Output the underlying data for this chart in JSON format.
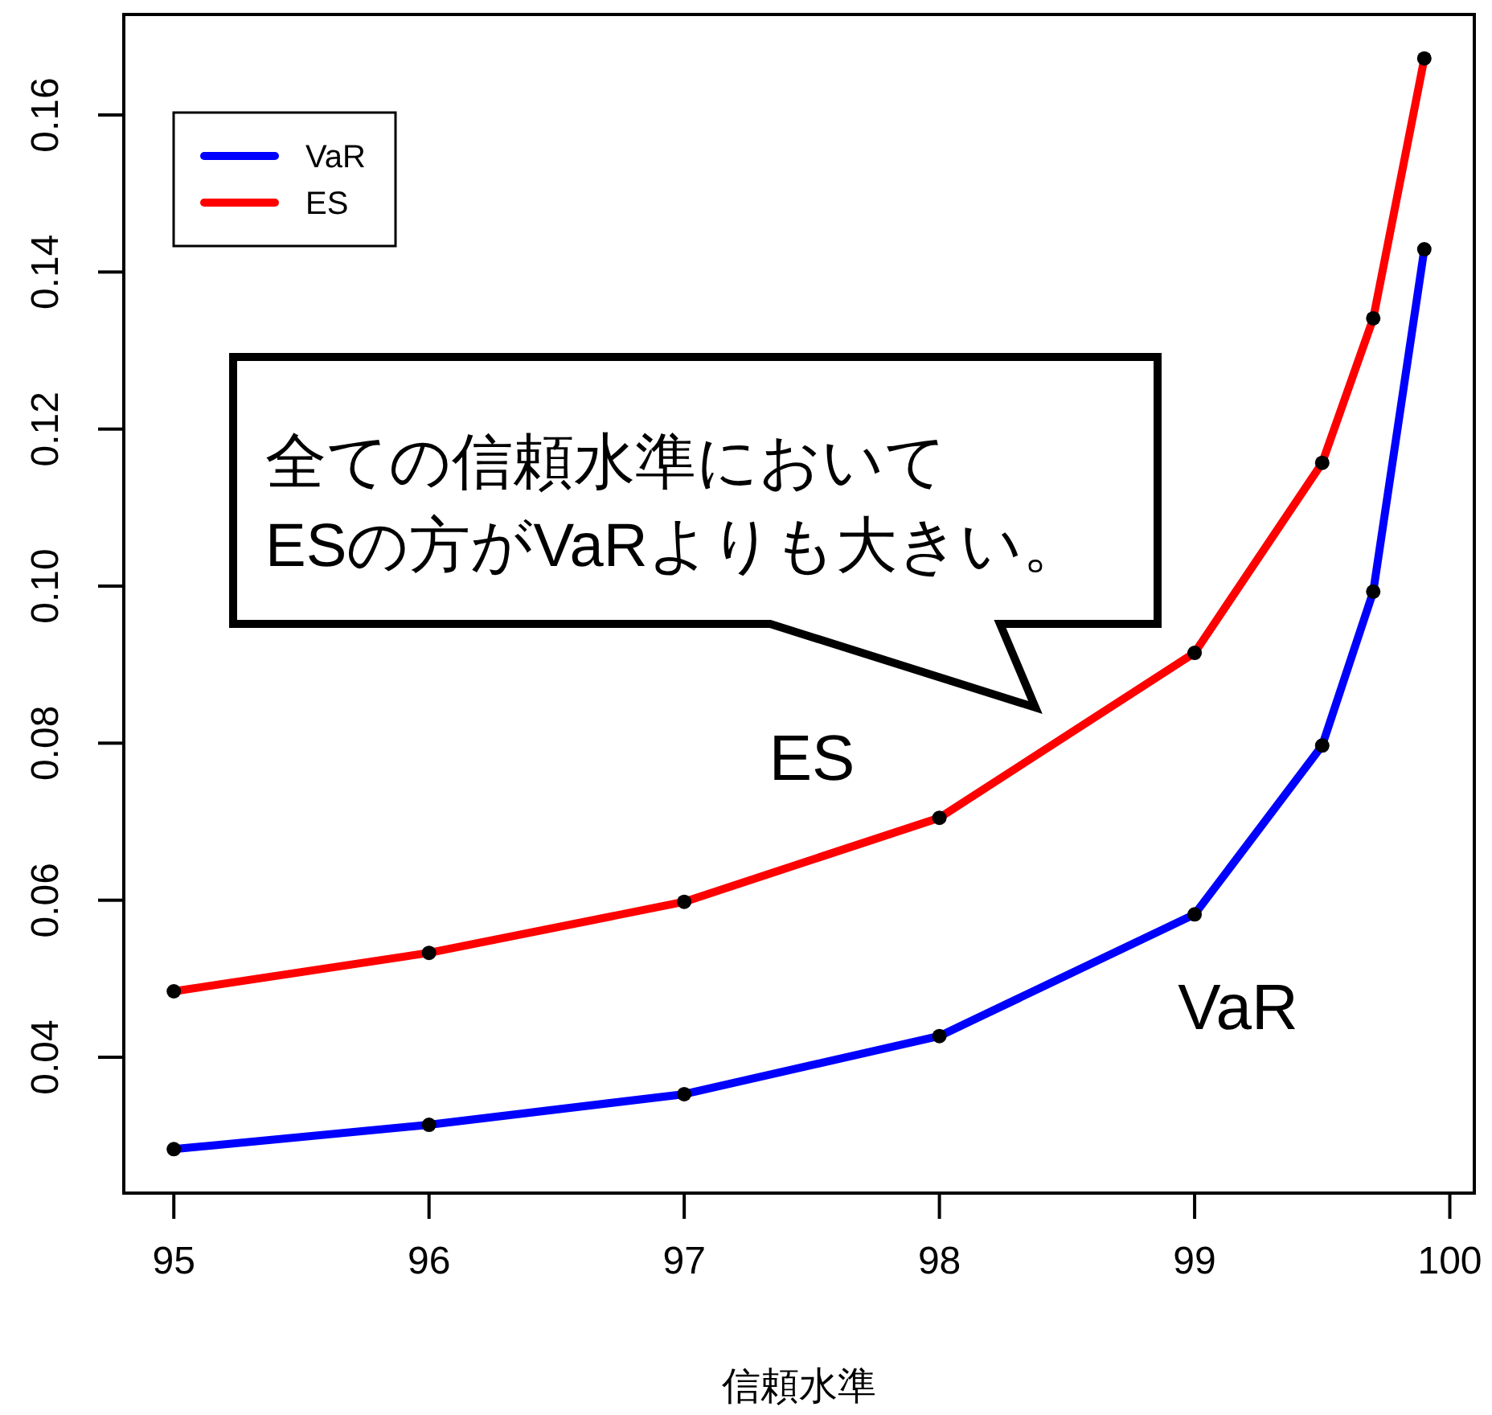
{
  "chart_data": {
    "type": "line",
    "xlabel": "信頼水準",
    "x": [
      95,
      96,
      97,
      98,
      99,
      99.5,
      99.7,
      99.9
    ],
    "series": [
      {
        "name": "VaR",
        "color": "#0000ff",
        "values": [
          0.0283,
          0.0314,
          0.0353,
          0.0427,
          0.0582,
          0.0797,
          0.0993,
          0.1429
        ]
      },
      {
        "name": "ES",
        "color": "#ff0000",
        "values": [
          0.0484,
          0.0533,
          0.0598,
          0.0705,
          0.0915,
          0.1157,
          0.1341,
          0.1672
        ]
      }
    ],
    "xlim": [
      94.804,
      100.096
    ],
    "ylim": [
      0.0227,
      0.1728
    ],
    "xticks": [
      95,
      96,
      97,
      98,
      99,
      100
    ],
    "yticks": [
      {
        "value": 0.04,
        "label": "0.04"
      },
      {
        "value": 0.06,
        "label": "0.06"
      },
      {
        "value": 0.08,
        "label": "0.08"
      },
      {
        "value": 0.1,
        "label": "0.10"
      },
      {
        "value": 0.12,
        "label": "0.12"
      },
      {
        "value": 0.14,
        "label": "0.14"
      },
      {
        "value": 0.16,
        "label": "0.16"
      }
    ],
    "legend": "top left",
    "marker": "circle",
    "line_style": "solid",
    "annotations": [
      "全ての信頼水準において\nESの方がVaRよりも大きい。",
      "ES",
      "VaR"
    ]
  }
}
